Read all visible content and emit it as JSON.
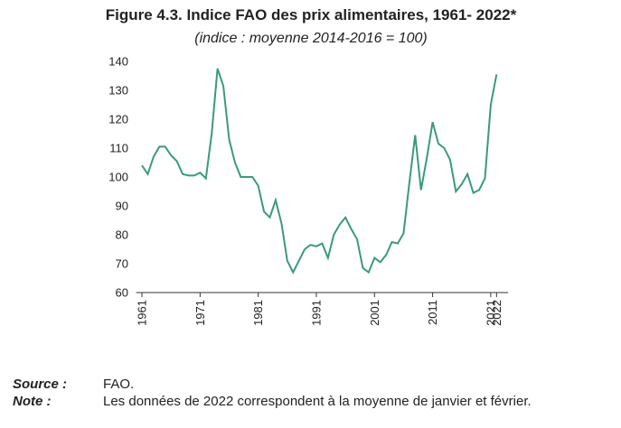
{
  "chart_data": {
    "type": "line",
    "title": "Figure 4.3.  Indice FAO des prix alimentaires, 1961- 2022*",
    "subtitle": "(indice : moyenne 2014-2016 = 100)",
    "x": [
      1961,
      1962,
      1963,
      1964,
      1965,
      1966,
      1967,
      1968,
      1969,
      1970,
      1971,
      1972,
      1973,
      1974,
      1975,
      1976,
      1977,
      1978,
      1979,
      1980,
      1981,
      1982,
      1983,
      1984,
      1985,
      1986,
      1987,
      1988,
      1989,
      1990,
      1991,
      1992,
      1993,
      1994,
      1995,
      1996,
      1997,
      1998,
      1999,
      2000,
      2001,
      2002,
      2003,
      2004,
      2005,
      2006,
      2007,
      2008,
      2009,
      2010,
      2011,
      2012,
      2013,
      2014,
      2015,
      2016,
      2017,
      2018,
      2019,
      2020,
      2021,
      2022
    ],
    "series": [
      {
        "name": "Indice FAO des prix alimentaires",
        "color": "#3a9a7e",
        "values": [
          104,
          101,
          107,
          110.5,
          110.5,
          107.5,
          105.5,
          101,
          100.5,
          100.5,
          101.5,
          99.5,
          115,
          137.5,
          131.5,
          113,
          105,
          100,
          100,
          100,
          97,
          88,
          86,
          92,
          84,
          71,
          67,
          71,
          75,
          76.5,
          76,
          77,
          72,
          80,
          83.5,
          86,
          82,
          78.5,
          68.5,
          67,
          72,
          70.5,
          73,
          77.5,
          77,
          80.5,
          98,
          114.5,
          95.5,
          106.5,
          119,
          111.5,
          110,
          106,
          95,
          97.5,
          101,
          94.5,
          95.5,
          99.5,
          125,
          135.5
        ]
      }
    ],
    "xlim": [
      1960,
      2024
    ],
    "xticks": [
      1961,
      1971,
      1981,
      1991,
      2001,
      2011,
      2021,
      2022
    ],
    "ylim": [
      60,
      140
    ],
    "yticks": [
      60,
      70,
      80,
      90,
      100,
      110,
      120,
      130,
      140
    ],
    "grid": false,
    "notes": [
      {
        "label": "Source :",
        "text": "FAO."
      },
      {
        "label": "Note :",
        "text": "Les données de 2022 correspondent à la moyenne de janvier et février."
      }
    ]
  }
}
